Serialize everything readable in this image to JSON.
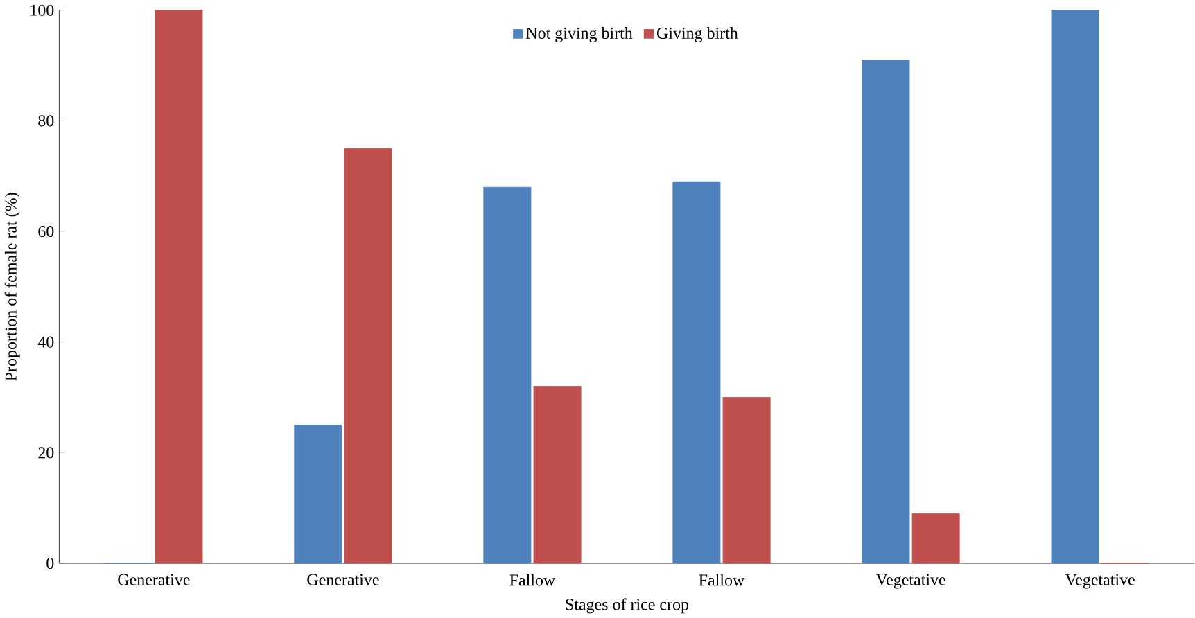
{
  "chart_data": {
    "type": "bar",
    "xlabel": "Stages of rice crop",
    "ylabel": "Proportion of female rat (%)",
    "categories": [
      "Generative",
      "Generative",
      "Fallow",
      "Fallow",
      "Vegetative",
      "Vegetative"
    ],
    "series": [
      {
        "name": "Not giving birth",
        "color": "#4f81bd",
        "values": [
          0,
          25,
          68,
          69,
          91,
          100
        ]
      },
      {
        "name": "Giving birth",
        "color": "#c0504d",
        "values": [
          100,
          75,
          32,
          30,
          9,
          0
        ]
      }
    ],
    "ylim": [
      0,
      100
    ],
    "yticks": [
      0,
      20,
      40,
      60,
      80,
      100
    ],
    "legend": "top",
    "grid": false
  }
}
